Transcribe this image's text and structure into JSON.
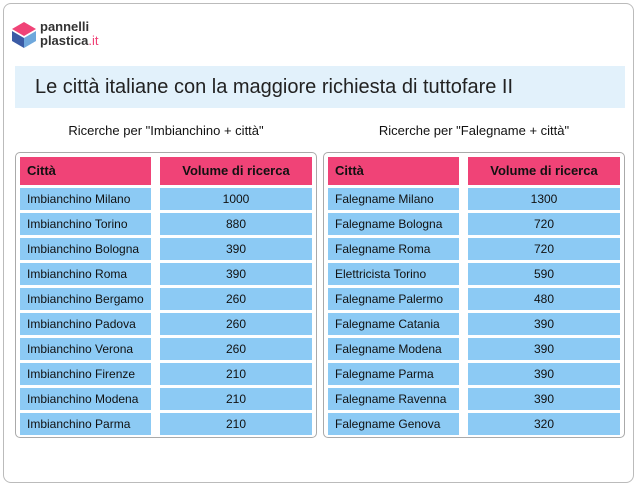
{
  "logo": {
    "line1": "pannelli",
    "line2": "plastica",
    "suffix": ".it"
  },
  "title": "Le città italiane con la maggiore richiesta di tuttofare II",
  "tables": [
    {
      "caption": "Ricerche per \"Imbianchino + città\"",
      "header": [
        "Città",
        "Volume di ricerca"
      ],
      "rows": [
        [
          "Imbianchino Milano",
          1000
        ],
        [
          "Imbianchino Torino",
          880
        ],
        [
          "Imbianchino Bologna",
          390
        ],
        [
          "Imbianchino Roma",
          390
        ],
        [
          "Imbianchino Bergamo",
          260
        ],
        [
          "Imbianchino Padova",
          260
        ],
        [
          "Imbianchino Verona",
          260
        ],
        [
          "Imbianchino Firenze",
          210
        ],
        [
          "Imbianchino Modena",
          210
        ],
        [
          "Imbianchino Parma",
          210
        ]
      ]
    },
    {
      "caption": "Ricerche per \"Falegname + città\"",
      "header": [
        "Città",
        "Volume di ricerca"
      ],
      "rows": [
        [
          "Falegname Milano",
          1300
        ],
        [
          "Falegname Bologna",
          720
        ],
        [
          "Falegname Roma",
          720
        ],
        [
          "Elettricista Torino",
          590
        ],
        [
          "Falegname Palermo",
          480
        ],
        [
          "Falegname Catania",
          390
        ],
        [
          "Falegname Modena",
          390
        ],
        [
          "Falegname Parma",
          390
        ],
        [
          "Falegname Ravenna",
          390
        ],
        [
          "Falegname Genova",
          320
        ]
      ]
    }
  ]
}
